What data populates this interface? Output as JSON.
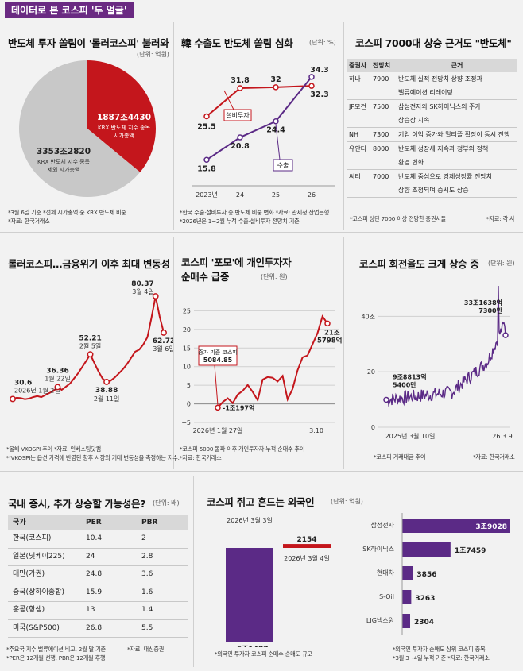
{
  "header": {
    "title": "데이터로 본 코스피 '두 얼굴'"
  },
  "panels": {
    "p1": {
      "title": "반도체 투자 쏠림이 '롤러코스피' 불러와",
      "unit": "(단위: 억원)",
      "note1": "*3월 6일 기준   *전체 시가총액 중 KRX 반도체 비중",
      "note2": "*자료: 한국거래소"
    },
    "p2": {
      "title": "韓 수출도 반도체 쏠림 심화",
      "unit": "(단위: %)",
      "note1": "*한국 수출·설비투자 중 반도체 비중 변화   *자료: 관세청·산업은행",
      "note2": "*2026년은 1~2월 누적 수출·설비투자 전망치 기준"
    },
    "p3": {
      "title": "코스피 7000대 상승 근거도 \"반도체\"",
      "headers": [
        "증권사",
        "전망치",
        "근거"
      ],
      "rows": [
        {
          "firm": "하나",
          "target": "7900",
          "reason1": "반도체 실적 전망치 상향 조정과",
          "reason2": "밸류에이션 리레이팅"
        },
        {
          "firm": "JP모건",
          "target": "7500",
          "reason1": "삼성전자와 SK하이닉스의 주가",
          "reason2": "상승장 지속"
        },
        {
          "firm": "NH",
          "target": "7300",
          "reason1": "기업 이익 증가와 멀티플 확장이 동시 진행",
          "reason2": ""
        },
        {
          "firm": "유안타",
          "target": "8000",
          "reason1": "반도체 성장세 지속과 정부의 정책",
          "reason2": "환경 변화"
        },
        {
          "firm": "씨티",
          "target": "7000",
          "reason1": "반도체 중심으로 경제성장률 전망치",
          "reason2": "상향 조정되며 증시도 상승"
        }
      ],
      "note_left": "*코스피 상단 7000 이상 전망한 증권사들",
      "note_right": "*자료: 각 사"
    },
    "p4": {
      "title": "롤러코스피…금융위기 이후 최대 변동성",
      "note1": "*올해 VKOSPI 추이   *자료: 인베스팅닷컴",
      "note2": "* VKOSPI는 옵션 가격에 반영된 향후 시장의 기대 변동성을 측정하는 지수."
    },
    "p5": {
      "title1": "코스피 '포모'에 개인투자자",
      "title2": "순매수 급증",
      "unit": "(단위: 원)",
      "note1": "*코스피 5000 돌파 이후 개인투자자 누적 순매수 추이",
      "note2": "*자료: 한국거래소"
    },
    "p6": {
      "title": "코스피 회전율도 크게 상승 중",
      "unit": "(단위: 원)",
      "note_left": "*코스피 거래대금 추이",
      "note_right": "*자료: 한국거래소"
    },
    "p7": {
      "title": "국내 증시, 추가 상승할 가능성은?",
      "unit": "(단위: 배)",
      "headers": [
        "국가",
        "PER",
        "PBR"
      ],
      "rows": [
        {
          "country": "한국(코스피)",
          "per": "10.4",
          "pbr": "2"
        },
        {
          "country": "일본(닛케이225)",
          "per": "24",
          "pbr": "2.8"
        },
        {
          "country": "대만(가권)",
          "per": "24.8",
          "pbr": "3.6"
        },
        {
          "country": "중국(상하이종합)",
          "per": "15.9",
          "pbr": "1.6"
        },
        {
          "country": "홍콩(항셍)",
          "per": "13",
          "pbr": "1.4"
        },
        {
          "country": "미국(S&P500)",
          "per": "26.8",
          "pbr": "5.5"
        }
      ],
      "note1": "*주요국 지수 밸류에이션 비교, 2월 말 기준",
      "note1b": "*자료: 대신증권",
      "note2": "*PER은 12개월 선행, PBR은 12개월 후행"
    },
    "p8": {
      "title": "코스피 쥐고 흔드는 외국인",
      "unit": "(단위: 억원)",
      "note1": "*외국인 투자자 코스피 순매수·순매도 규모",
      "note_r1": "*외국인 투자자 순매도 상위 코스피 종목",
      "note_r2": "*3월 3~4일 누적 기준   *자료: 한국거래소"
    }
  },
  "chart_data": [
    {
      "id": "market-cap-pie",
      "type": "pie",
      "title": "반도체 투자 쏠림이 '롤러코스피' 불러와",
      "slices": [
        {
          "value_label": "1887조4430",
          "label1": "KRX 반도체 지수 종목",
          "label2": "시가총액",
          "value": 1887.443,
          "color": "#c4161c"
        },
        {
          "value_label": "3353조2820",
          "label1": "KRX 반도체 지수 종목",
          "label2": "제외 시가총액",
          "value": 3353.282,
          "color": "#c8c8c8"
        }
      ]
    },
    {
      "id": "export-share",
      "type": "line",
      "title": "韓 수출도 반도체 쏠림 심화",
      "categories": [
        "2023년",
        "24",
        "25",
        "26"
      ],
      "ylim": [
        10,
        38
      ],
      "series": [
        {
          "name": "설비투자",
          "color": "#c4161c",
          "values": [
            25.5,
            31.8,
            32,
            32.3
          ],
          "labels": [
            "25.5",
            "31.8",
            "32",
            "32.3"
          ]
        },
        {
          "name": "수출",
          "color": "#5b2a86",
          "values": [
            15.8,
            20.8,
            24.4,
            34.3
          ],
          "labels": [
            "15.8",
            "20.8",
            "24.4",
            "34.3"
          ]
        }
      ]
    },
    {
      "id": "vkospi",
      "type": "line",
      "title": "VKOSPI",
      "ylim": [
        20,
        90
      ],
      "values": [
        30.6,
        31.2,
        31.0,
        30.5,
        30.8,
        31.5,
        32.0,
        31.5,
        32.5,
        33.5,
        34.5,
        36.36,
        35.0,
        36.5,
        38.0,
        40.5,
        43.0,
        46.0,
        49.0,
        52.21,
        48.0,
        44.0,
        40.5,
        38.88,
        39.5,
        41.0,
        43.0,
        45.0,
        47.5,
        50.5,
        53.5,
        54.5,
        57.0,
        60.5,
        70.0,
        80.37,
        70.5,
        62.72
      ],
      "annotations": [
        {
          "index": 0,
          "value": "30.6",
          "date": "2026년 1월 2일"
        },
        {
          "index": 11,
          "value": "36.36",
          "date": "1월 22일"
        },
        {
          "index": 19,
          "value": "52.21",
          "date": "2월 5일"
        },
        {
          "index": 23,
          "value": "38.88",
          "date": "2월 11일"
        },
        {
          "index": 35,
          "value": "80.37",
          "date": "3월 4일"
        },
        {
          "index": 37,
          "value": "62.72",
          "date": "3월 6일"
        }
      ]
    },
    {
      "id": "retail-net-buy",
      "type": "line",
      "title": "개인투자자 누적 순매수",
      "yticks": [
        "25",
        "20",
        "15",
        "10",
        "5",
        "0",
        "-5"
      ],
      "ylim": [
        -5,
        27
      ],
      "xlabels": [
        "2026년 1월 27일",
        "3.10"
      ],
      "values": [
        -1.02,
        0.5,
        1.5,
        0.2,
        2.5,
        3.5,
        5.08,
        3.2,
        1.0,
        6.5,
        7.2,
        7.0,
        6.0,
        7.5,
        1.2,
        4.0,
        9.0,
        12.5,
        13.0,
        16.0,
        19.0,
        23.5,
        21.58
      ],
      "labels": {
        "start": "-1조197억",
        "mid_title": "증가 기준 코스피",
        "mid_value": "5084.85",
        "end1": "21조",
        "end2": "5798억"
      }
    },
    {
      "id": "trading-value",
      "type": "line",
      "title": "코스피 거래대금 추이",
      "yticks": [
        "40조",
        "20",
        "0"
      ],
      "ylim": [
        0,
        55
      ],
      "xlabels": [
        "2025년 3월 10일",
        "26.3.9"
      ],
      "labels": {
        "start1": "9조8813억",
        "start2": "5400만",
        "end1": "33조1638억",
        "end2": "7300만"
      }
    },
    {
      "id": "foreign-net",
      "type": "bar",
      "title": "외국인 코스피 순매수·순매도",
      "categories": [
        "2026년 3월 3일",
        "2026년 3월 4일"
      ],
      "values": [
        -51487,
        2154
      ],
      "value_labels": [
        "-5조1487",
        "2154"
      ]
    },
    {
      "id": "foreign-sell-top",
      "type": "bar",
      "title": "외국인 순매도 상위 종목",
      "categories": [
        "삼성전자",
        "SK하이닉스",
        "현대차",
        "S-Oil",
        "LIG넥스원"
      ],
      "values": [
        39028,
        17459,
        3856,
        3263,
        2304
      ],
      "value_labels": [
        "3조9028",
        "1조7459",
        "3856",
        "3263",
        "2304"
      ]
    }
  ]
}
